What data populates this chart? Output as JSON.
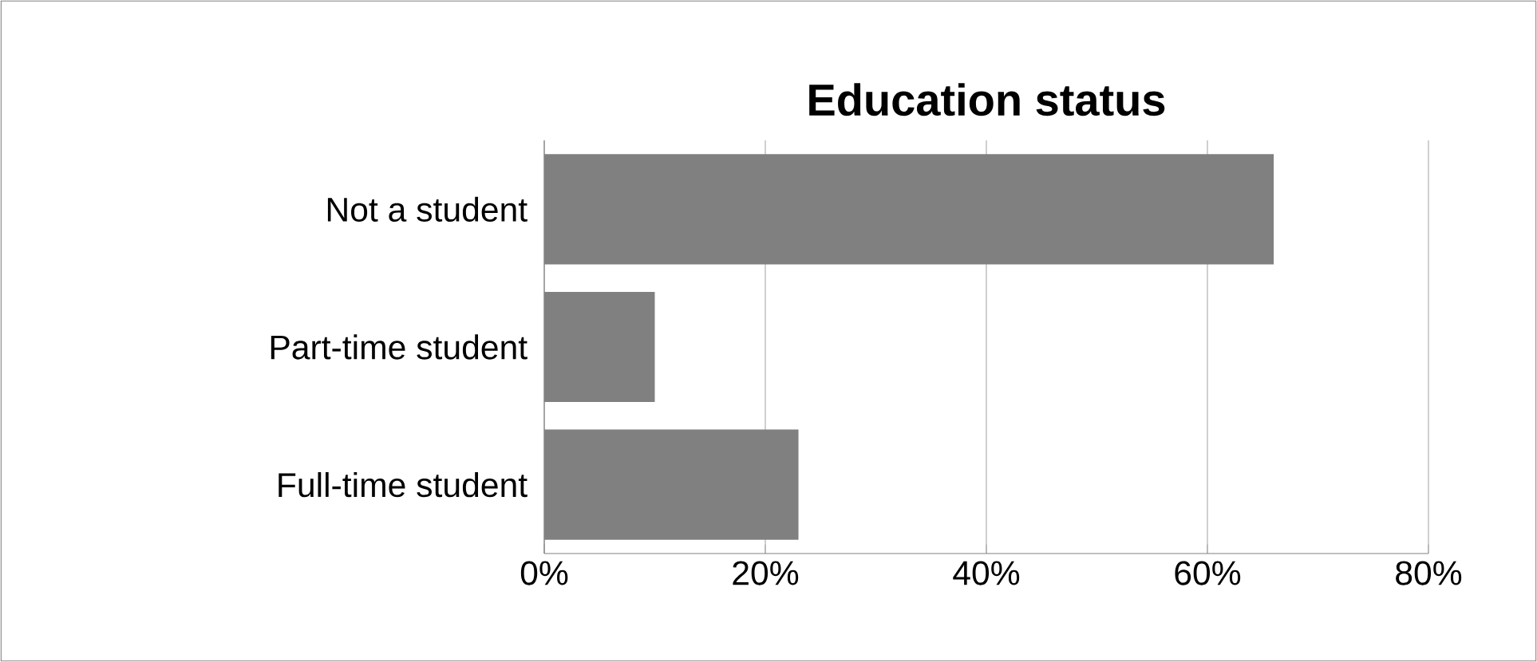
{
  "chart_data": {
    "type": "bar",
    "orientation": "horizontal",
    "title": "Education status",
    "categories": [
      "Not a student",
      "Part-time student",
      "Full-time student"
    ],
    "values": [
      66,
      10,
      23
    ],
    "color": "#808080",
    "xlim": [
      0,
      80
    ],
    "xticks": [
      {
        "value": 0,
        "label": "0%"
      },
      {
        "value": 20,
        "label": "20%"
      },
      {
        "value": 40,
        "label": "40%"
      },
      {
        "value": 60,
        "label": "60%"
      },
      {
        "value": 80,
        "label": "80%"
      }
    ],
    "grid": "x"
  }
}
